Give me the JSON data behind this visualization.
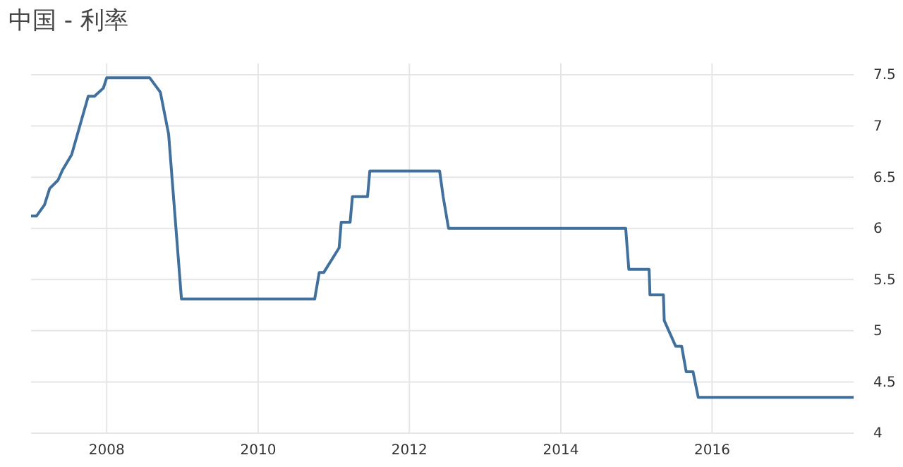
{
  "chart_data": {
    "type": "line",
    "title": "中国 - 利率",
    "x": [
      "2007-01-01",
      "2007-01-27",
      "2007-03-07",
      "2007-04-01",
      "2007-05-11",
      "2007-06-02",
      "2007-07-16",
      "2007-10-04",
      "2007-11-03",
      "2007-12-16",
      "2008-01-01",
      "2008-07-27",
      "2008-09-16",
      "2008-10-26",
      "2008-12-27",
      "2010-10-01",
      "2010-10-23",
      "2010-11-14",
      "2011-01-27",
      "2011-02-06",
      "2011-03-21",
      "2011-04-01",
      "2011-06-13",
      "2011-06-24",
      "2012-05-26",
      "2012-06-12",
      "2012-07-08",
      "2014-11-10",
      "2014-11-25",
      "2015-03-03",
      "2015-03-07",
      "2015-05-11",
      "2015-05-15",
      "2015-07-09",
      "2015-08-07",
      "2015-08-29",
      "2015-10-01",
      "2015-10-26",
      "2017-11-14"
    ],
    "series": [
      {
        "color": "#41709d",
        "values": [
          6.12,
          6.12,
          6.23,
          6.39,
          6.47,
          6.57,
          6.72,
          7.29,
          7.29,
          7.37,
          7.47,
          7.47,
          7.33,
          6.92,
          5.31,
          5.31,
          5.57,
          5.57,
          5.81,
          6.06,
          6.06,
          6.31,
          6.31,
          6.56,
          6.56,
          6.31,
          6.0,
          6.0,
          5.6,
          5.6,
          5.35,
          5.35,
          5.1,
          4.85,
          4.85,
          4.6,
          4.6,
          4.35,
          4.35
        ]
      }
    ],
    "xlim": [
      "2007-01-01",
      "2017-11-14"
    ],
    "xticks": [
      {
        "value": "2008-01-01",
        "label": "2008"
      },
      {
        "value": "2010-01-01",
        "label": "2010"
      },
      {
        "value": "2012-01-01",
        "label": "2012"
      },
      {
        "value": "2014-01-01",
        "label": "2014"
      },
      {
        "value": "2016-01-01",
        "label": "2016"
      }
    ],
    "ylim": [
      4,
      7.5
    ],
    "yticks": [
      4,
      4.5,
      5,
      5.5,
      6,
      6.5,
      7,
      7.5
    ],
    "grid": true,
    "line_style": "solid",
    "marker": "none"
  }
}
